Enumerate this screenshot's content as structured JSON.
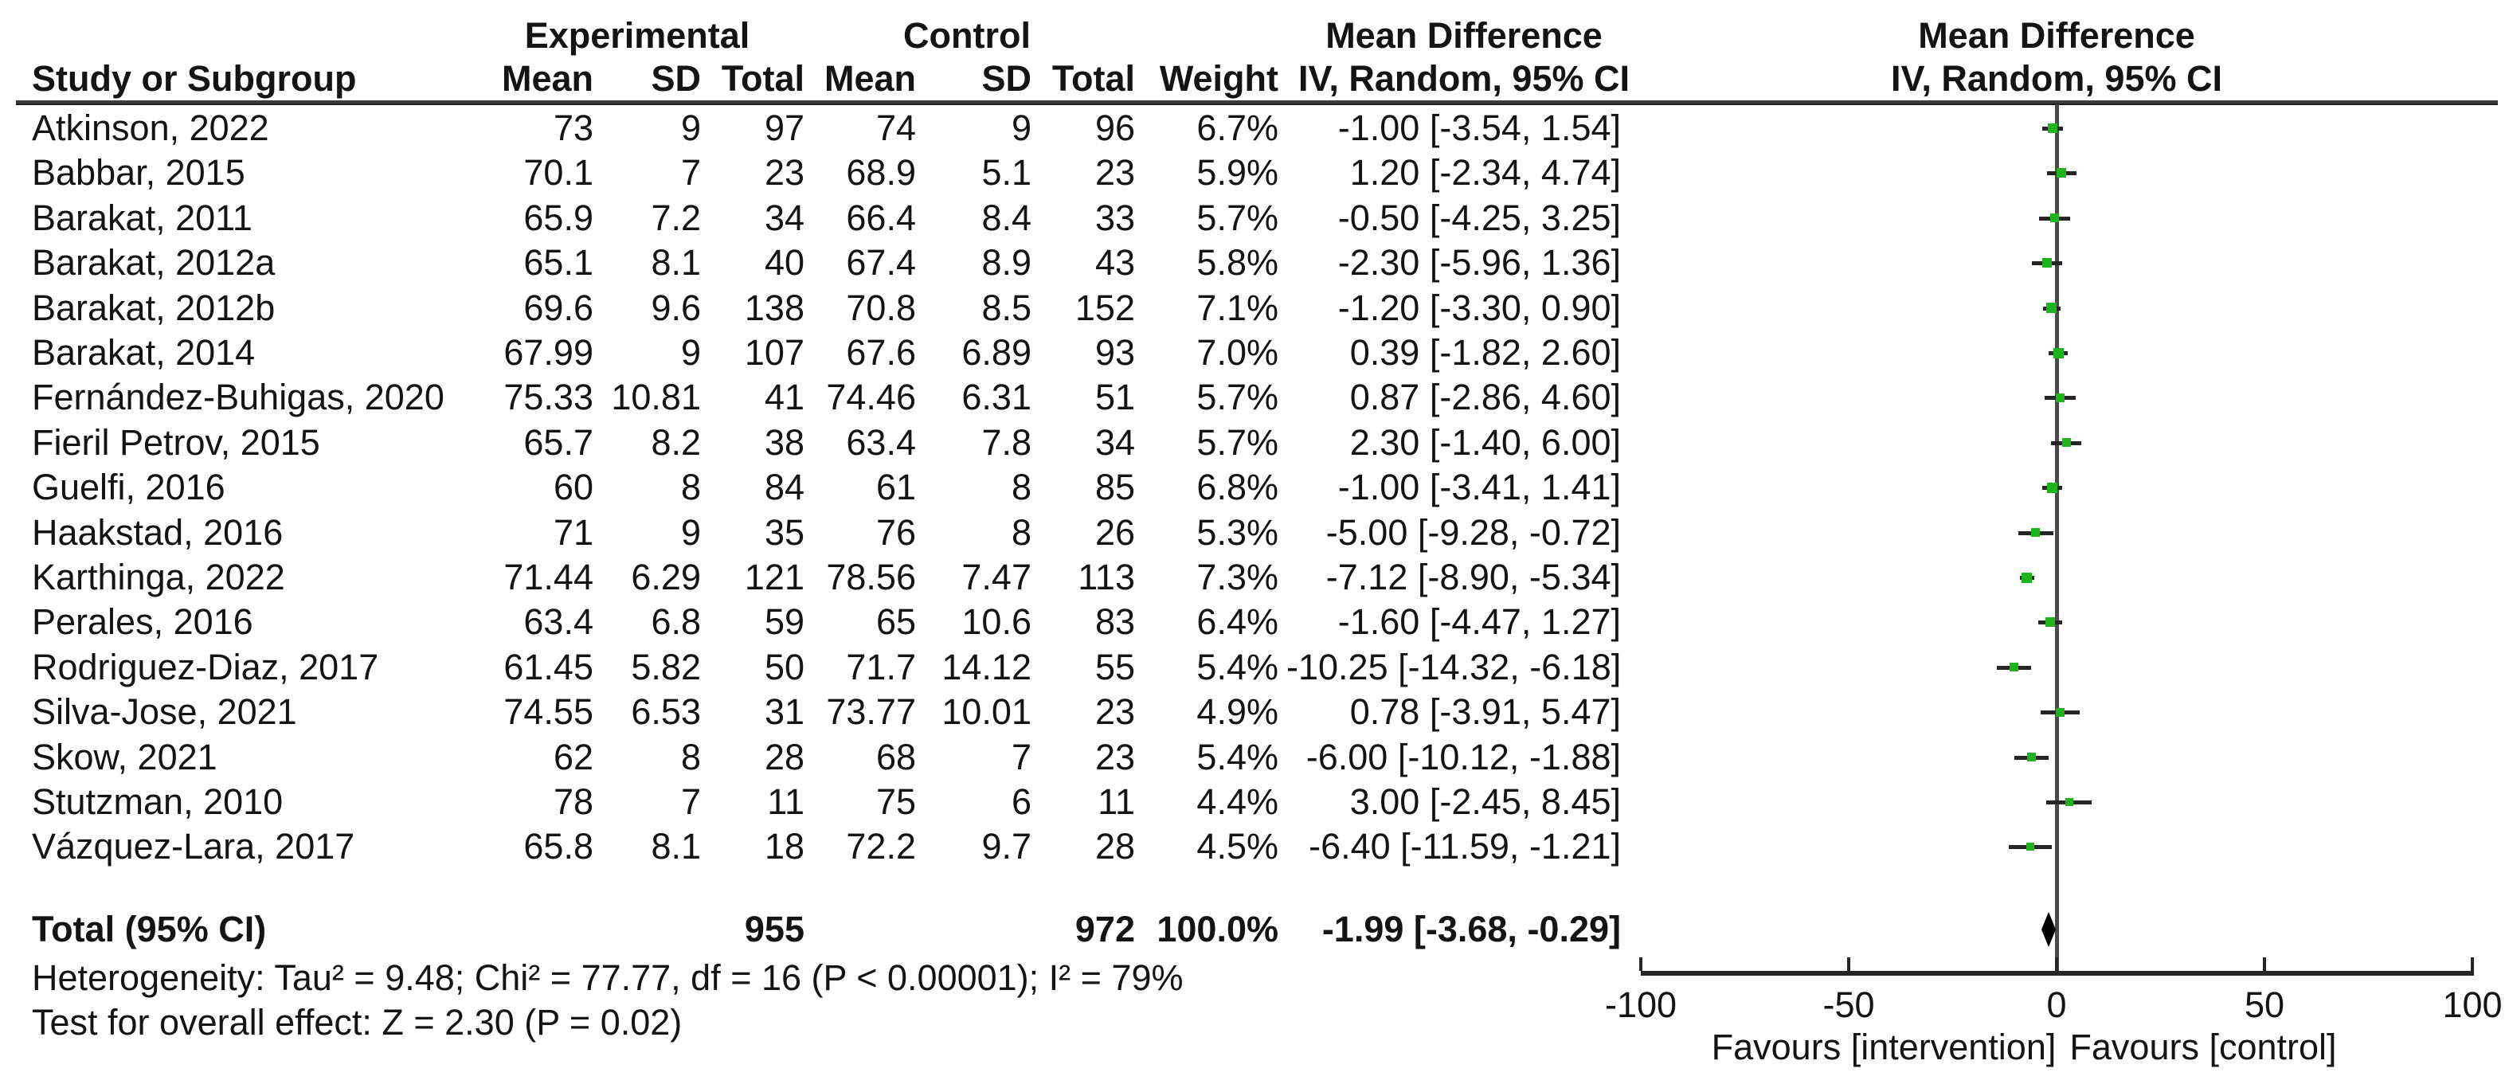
{
  "header": {
    "study_col": "Study or Subgroup",
    "group_experimental": "Experimental",
    "group_control": "Control",
    "exp_mean": "Mean",
    "exp_sd": "SD",
    "exp_total": "Total",
    "ctrl_mean": "Mean",
    "ctrl_sd": "SD",
    "ctrl_total": "Total",
    "weight": "Weight",
    "md_col_line1": "Mean Difference",
    "md_col_line2": "IV, Random, 95% CI",
    "plot_col_line1": "Mean Difference",
    "plot_col_line2": "IV, Random, 95% CI"
  },
  "chart_data": {
    "type": "forest",
    "effect_measure": "Mean Difference",
    "method": "IV, Random, 95% CI",
    "studies": [
      {
        "name": "Atkinson, 2022",
        "exp_mean": "73",
        "exp_sd": "9",
        "exp_total": "97",
        "ctrl_mean": "74",
        "ctrl_sd": "9",
        "ctrl_total": "96",
        "weight": "6.7%",
        "md": -1.0,
        "ci_low": -3.54,
        "ci_high": 1.54,
        "md_text": "-1.00 [-3.54, 1.54]"
      },
      {
        "name": "Babbar, 2015",
        "exp_mean": "70.1",
        "exp_sd": "7",
        "exp_total": "23",
        "ctrl_mean": "68.9",
        "ctrl_sd": "5.1",
        "ctrl_total": "23",
        "weight": "5.9%",
        "md": 1.2,
        "ci_low": -2.34,
        "ci_high": 4.74,
        "md_text": "1.20 [-2.34, 4.74]"
      },
      {
        "name": "Barakat, 2011",
        "exp_mean": "65.9",
        "exp_sd": "7.2",
        "exp_total": "34",
        "ctrl_mean": "66.4",
        "ctrl_sd": "8.4",
        "ctrl_total": "33",
        "weight": "5.7%",
        "md": -0.5,
        "ci_low": -4.25,
        "ci_high": 3.25,
        "md_text": "-0.50 [-4.25, 3.25]"
      },
      {
        "name": "Barakat, 2012a",
        "exp_mean": "65.1",
        "exp_sd": "8.1",
        "exp_total": "40",
        "ctrl_mean": "67.4",
        "ctrl_sd": "8.9",
        "ctrl_total": "43",
        "weight": "5.8%",
        "md": -2.3,
        "ci_low": -5.96,
        "ci_high": 1.36,
        "md_text": "-2.30 [-5.96, 1.36]"
      },
      {
        "name": "Barakat, 2012b",
        "exp_mean": "69.6",
        "exp_sd": "9.6",
        "exp_total": "138",
        "ctrl_mean": "70.8",
        "ctrl_sd": "8.5",
        "ctrl_total": "152",
        "weight": "7.1%",
        "md": -1.2,
        "ci_low": -3.3,
        "ci_high": 0.9,
        "md_text": "-1.20 [-3.30, 0.90]"
      },
      {
        "name": "Barakat, 2014",
        "exp_mean": "67.99",
        "exp_sd": "9",
        "exp_total": "107",
        "ctrl_mean": "67.6",
        "ctrl_sd": "6.89",
        "ctrl_total": "93",
        "weight": "7.0%",
        "md": 0.39,
        "ci_low": -1.82,
        "ci_high": 2.6,
        "md_text": "0.39 [-1.82, 2.60]"
      },
      {
        "name": "Fernández-Buhigas, 2020",
        "exp_mean": "75.33",
        "exp_sd": "10.81",
        "exp_total": "41",
        "ctrl_mean": "74.46",
        "ctrl_sd": "6.31",
        "ctrl_total": "51",
        "weight": "5.7%",
        "md": 0.87,
        "ci_low": -2.86,
        "ci_high": 4.6,
        "md_text": "0.87 [-2.86, 4.60]"
      },
      {
        "name": "Fieril Petrov, 2015",
        "exp_mean": "65.7",
        "exp_sd": "8.2",
        "exp_total": "38",
        "ctrl_mean": "63.4",
        "ctrl_sd": "7.8",
        "ctrl_total": "34",
        "weight": "5.7%",
        "md": 2.3,
        "ci_low": -1.4,
        "ci_high": 6.0,
        "md_text": "2.30 [-1.40, 6.00]"
      },
      {
        "name": "Guelfi, 2016",
        "exp_mean": "60",
        "exp_sd": "8",
        "exp_total": "84",
        "ctrl_mean": "61",
        "ctrl_sd": "8",
        "ctrl_total": "85",
        "weight": "6.8%",
        "md": -1.0,
        "ci_low": -3.41,
        "ci_high": 1.41,
        "md_text": "-1.00 [-3.41, 1.41]"
      },
      {
        "name": "Haakstad, 2016",
        "exp_mean": "71",
        "exp_sd": "9",
        "exp_total": "35",
        "ctrl_mean": "76",
        "ctrl_sd": "8",
        "ctrl_total": "26",
        "weight": "5.3%",
        "md": -5.0,
        "ci_low": -9.28,
        "ci_high": -0.72,
        "md_text": "-5.00 [-9.28, -0.72]"
      },
      {
        "name": "Karthinga, 2022",
        "exp_mean": "71.44",
        "exp_sd": "6.29",
        "exp_total": "121",
        "ctrl_mean": "78.56",
        "ctrl_sd": "7.47",
        "ctrl_total": "113",
        "weight": "7.3%",
        "md": -7.12,
        "ci_low": -8.9,
        "ci_high": -5.34,
        "md_text": "-7.12 [-8.90, -5.34]"
      },
      {
        "name": "Perales, 2016",
        "exp_mean": "63.4",
        "exp_sd": "6.8",
        "exp_total": "59",
        "ctrl_mean": "65",
        "ctrl_sd": "10.6",
        "ctrl_total": "83",
        "weight": "6.4%",
        "md": -1.6,
        "ci_low": -4.47,
        "ci_high": 1.27,
        "md_text": "-1.60 [-4.47, 1.27]"
      },
      {
        "name": "Rodriguez-Diaz, 2017",
        "exp_mean": "61.45",
        "exp_sd": "5.82",
        "exp_total": "50",
        "ctrl_mean": "71.7",
        "ctrl_sd": "14.12",
        "ctrl_total": "55",
        "weight": "5.4%",
        "md": -10.25,
        "ci_low": -14.32,
        "ci_high": -6.18,
        "md_text": "-10.25 [-14.32, -6.18]"
      },
      {
        "name": "Silva-Jose, 2021",
        "exp_mean": "74.55",
        "exp_sd": "6.53",
        "exp_total": "31",
        "ctrl_mean": "73.77",
        "ctrl_sd": "10.01",
        "ctrl_total": "23",
        "weight": "4.9%",
        "md": 0.78,
        "ci_low": -3.91,
        "ci_high": 5.47,
        "md_text": "0.78 [-3.91, 5.47]"
      },
      {
        "name": "Skow, 2021",
        "exp_mean": "62",
        "exp_sd": "8",
        "exp_total": "28",
        "ctrl_mean": "68",
        "ctrl_sd": "7",
        "ctrl_total": "23",
        "weight": "5.4%",
        "md": -6.0,
        "ci_low": -10.12,
        "ci_high": -1.88,
        "md_text": "-6.00 [-10.12, -1.88]"
      },
      {
        "name": "Stutzman, 2010",
        "exp_mean": "78",
        "exp_sd": "7",
        "exp_total": "11",
        "ctrl_mean": "75",
        "ctrl_sd": "6",
        "ctrl_total": "11",
        "weight": "4.4%",
        "md": 3.0,
        "ci_low": -2.45,
        "ci_high": 8.45,
        "md_text": "3.00 [-2.45, 8.45]"
      },
      {
        "name": "Vázquez-Lara, 2017",
        "exp_mean": "65.8",
        "exp_sd": "8.1",
        "exp_total": "18",
        "ctrl_mean": "72.2",
        "ctrl_sd": "9.7",
        "ctrl_total": "28",
        "weight": "4.5%",
        "md": -6.4,
        "ci_low": -11.59,
        "ci_high": -1.21,
        "md_text": "-6.40 [-11.59, -1.21]"
      }
    ],
    "total": {
      "label": "Total (95% CI)",
      "exp_total": "955",
      "ctrl_total": "972",
      "weight": "100.0%",
      "md": -1.99,
      "ci_low": -3.68,
      "ci_high": -0.29,
      "md_text": "-1.99 [-3.68, -0.29]"
    },
    "axis": {
      "min": -100,
      "max": 100,
      "ticks": [
        "-100",
        "-50",
        "0",
        "50",
        "100"
      ],
      "tick_values": [
        -100,
        -50,
        0,
        50,
        100
      ],
      "left_label": "Favours [intervention]",
      "right_label": "Favours [control]"
    },
    "footnotes": {
      "heterogeneity": "Heterogeneity: Tau² = 9.48; Chi² = 77.77, df = 16 (P < 0.00001); I² = 79%",
      "overall_effect": "Test for overall effect: Z = 2.30 (P = 0.02)"
    },
    "colors": {
      "marker_green": "#1eb41e",
      "ci_black": "#262626",
      "diamond_black": "#000000"
    }
  }
}
